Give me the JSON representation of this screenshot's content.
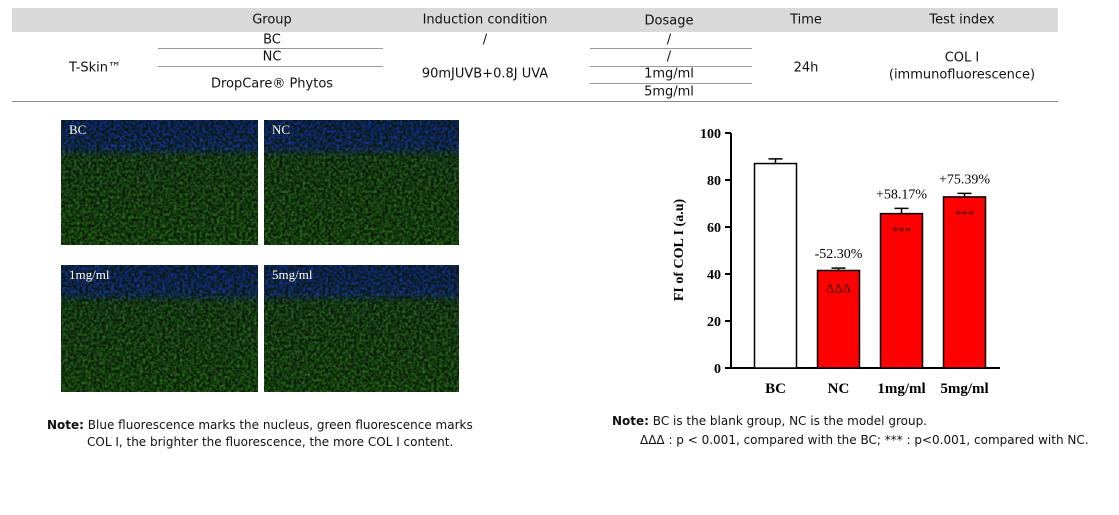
{
  "table": {
    "header": [
      "Group",
      "Induction condition",
      "Dosage",
      "Time",
      "Test index"
    ],
    "model": "T-Skin™",
    "groups": [
      "BC",
      "NC",
      "DropCare® Phytos"
    ],
    "induction": [
      "/",
      "90mJUVB+0.8J UVA"
    ],
    "dosage": [
      "/",
      "/",
      "1mg/ml",
      "5mg/ml"
    ],
    "time": "24h",
    "test_index": [
      "COL I",
      "(immunofluorescence)"
    ]
  },
  "images": [
    {
      "label": "BC"
    },
    {
      "label": "NC"
    },
    {
      "label": "1mg/ml"
    },
    {
      "label": "5mg/ml"
    }
  ],
  "chart_data": {
    "type": "bar",
    "y_label": "FI of COL I (a.u)",
    "categories": [
      "BC",
      "NC",
      "1mg/ml",
      "5mg/ml"
    ],
    "values": [
      87,
      41.5,
      65.7,
      72.8
    ],
    "errors": [
      2,
      1,
      2.2,
      1.5
    ],
    "colors": [
      "#ffffff",
      "#ff0000",
      "#ff0000",
      "#ff0000"
    ],
    "changes": [
      null,
      "-52.30%",
      "+58.17%",
      "+75.39%"
    ],
    "significance": [
      null,
      "ΔΔΔ",
      "***",
      "***"
    ],
    "ylim": [
      0,
      100
    ],
    "yticks": [
      0,
      20,
      40,
      60,
      80,
      100
    ]
  },
  "notes": {
    "left": {
      "label": "Note:",
      "lines": [
        "Blue fluorescence marks the nucleus, green fluorescence marks",
        "COL I, the brighter the fluorescence, the more COL I  content."
      ]
    },
    "right": {
      "label": "Note:",
      "lines": [
        "BC is the blank group, NC is the model group.",
        "ΔΔΔ : p  < 0.001, compared with the BC; *** : p<0.001, compared with NC."
      ]
    }
  }
}
